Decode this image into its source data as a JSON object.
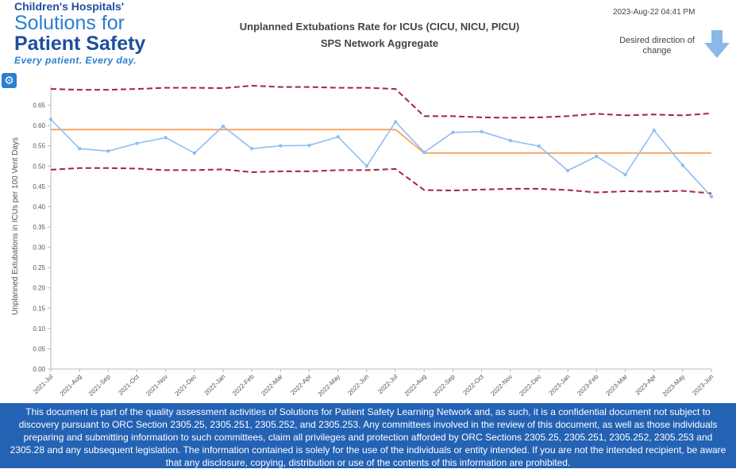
{
  "logo": {
    "line1": "Children's Hospitals'",
    "line2": "Solutions for",
    "line3": "Patient Safety",
    "tagline": "Every patient. Every day."
  },
  "header": {
    "timestamp": "2023-Aug-22 04:41 PM",
    "direction_label": "Desired direction of change"
  },
  "colors": {
    "rate_line": "#8fbef0",
    "center_line": "#f5a05a",
    "limit_line": "#a0283c",
    "footer_bg": "#2462b4",
    "accent": "#2a7fd0"
  },
  "chart_data": {
    "type": "line",
    "title": "Unplanned Extubations Rate for ICUs (CICU, NICU, PICU)",
    "subtitle": "SPS Network Aggregate",
    "ylabel": "Unplanned Extubations in ICUs per 100 Vent Days",
    "xlabel": "",
    "ylim": [
      0,
      0.7
    ],
    "yticks": [
      "0.00",
      "0.05",
      "0.10",
      "0.15",
      "0.20",
      "0.25",
      "0.30",
      "0.35",
      "0.40",
      "0.45",
      "0.50",
      "0.55",
      "0.60",
      "0.65"
    ],
    "grid": false,
    "categories": [
      "2021-Jul",
      "2021-Aug",
      "2021-Sep",
      "2021-Oct",
      "2021-Nov",
      "2021-Dec",
      "2022-Jan",
      "2022-Feb",
      "2022-Mar",
      "2022-Apr",
      "2022-May",
      "2022-Jun",
      "2022-Jul",
      "2022-Aug",
      "2022-Sep",
      "2022-Oct",
      "2022-Nov",
      "2022-Dec",
      "2023-Jan",
      "2023-Feb",
      "2023-Mar",
      "2023-Apr",
      "2023-May",
      "2023-Jun"
    ],
    "series": [
      {
        "name": "Rate",
        "style": "line-markers",
        "values": [
          0.615,
          0.543,
          0.537,
          0.556,
          0.57,
          0.532,
          0.598,
          0.543,
          0.55,
          0.551,
          0.572,
          0.5,
          0.609,
          0.534,
          0.583,
          0.585,
          0.563,
          0.549,
          0.489,
          0.524,
          0.479,
          0.588,
          0.502,
          0.425
        ]
      },
      {
        "name": "Center Line",
        "style": "solid",
        "values": [
          0.59,
          0.59,
          0.59,
          0.59,
          0.59,
          0.59,
          0.59,
          0.59,
          0.59,
          0.59,
          0.59,
          0.59,
          0.59,
          0.532,
          0.532,
          0.532,
          0.532,
          0.532,
          0.532,
          0.532,
          0.532,
          0.532,
          0.532,
          0.532
        ]
      },
      {
        "name": "Upper Control Limit",
        "style": "dashed",
        "values": [
          0.69,
          0.688,
          0.688,
          0.69,
          0.693,
          0.693,
          0.692,
          0.698,
          0.695,
          0.695,
          0.693,
          0.693,
          0.69,
          0.623,
          0.623,
          0.62,
          0.619,
          0.62,
          0.623,
          0.629,
          0.625,
          0.627,
          0.625,
          0.63
        ]
      },
      {
        "name": "Lower Control Limit",
        "style": "dashed",
        "values": [
          0.491,
          0.495,
          0.495,
          0.494,
          0.49,
          0.49,
          0.492,
          0.485,
          0.487,
          0.487,
          0.49,
          0.49,
          0.493,
          0.441,
          0.44,
          0.442,
          0.444,
          0.444,
          0.441,
          0.435,
          0.438,
          0.437,
          0.439,
          0.433
        ]
      }
    ]
  },
  "footer": {
    "disclaimer": "This document is part of the quality assessment activities of Solutions for Patient Safety Learning Network and, as such, it is a confidential document not subject to discovery pursuant to ORC Section 2305.25, 2305.251, 2305.252, and 2305.253. Any committees involved in the review of this document, as well as those individuals preparing and submitting information to such committees, claim all privileges and protection afforded by ORC Sections 2305.25, 2305.251, 2305.252, 2305.253 and 2305.28 and any subsequent legislation. The information contained is solely for the use of the individuals or entity intended. If you are not the intended recipient, be aware that any disclosure, copying, distribution or use of the contents of this information are prohibited."
  }
}
